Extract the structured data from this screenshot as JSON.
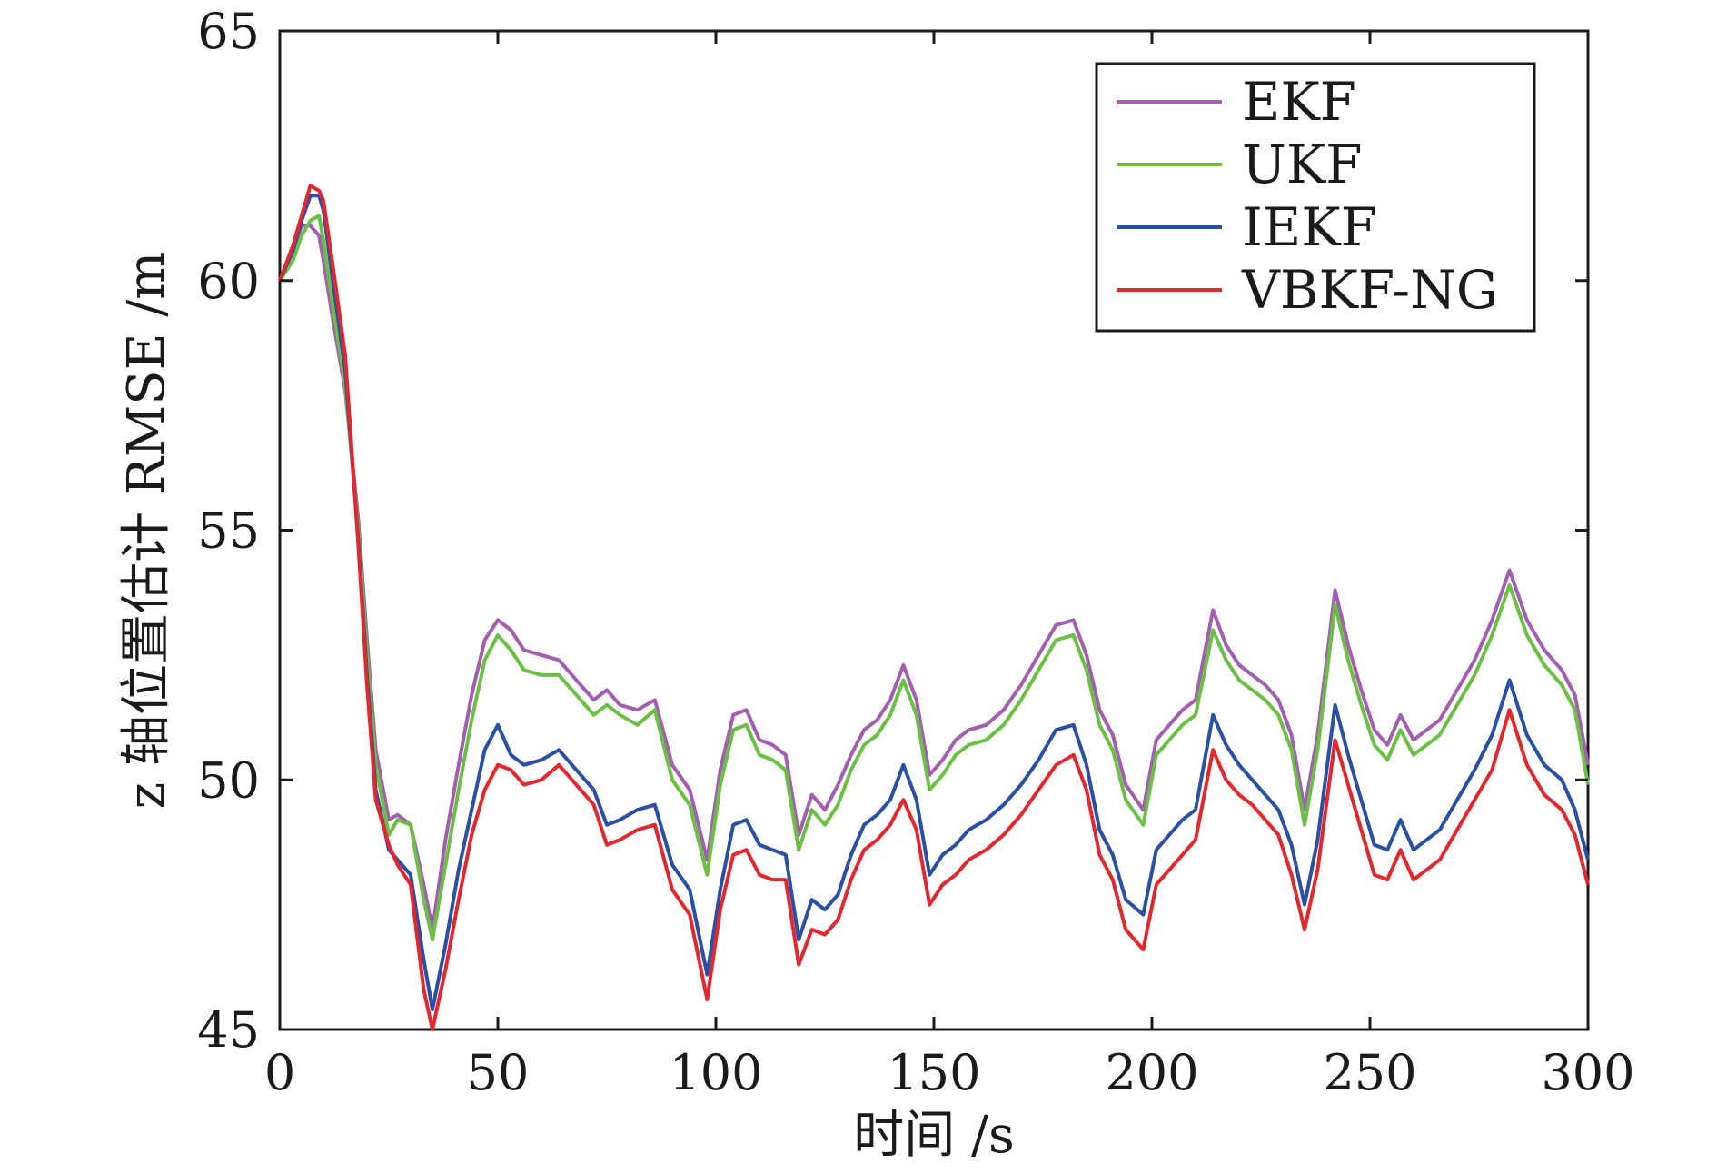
{
  "chart_data": {
    "type": "line",
    "xlabel": "时间 /s",
    "ylabel": "z 轴位置估计 RMSE /m",
    "xlim": [
      0,
      300
    ],
    "ylim": [
      45,
      65
    ],
    "xticks": [
      "0",
      "50",
      "100",
      "150",
      "200",
      "250",
      "300"
    ],
    "yticks": [
      "45",
      "50",
      "55",
      "60",
      "65"
    ],
    "grid": false,
    "legend_position": "top-right",
    "colors": {
      "EKF": "#a25fb0",
      "UKF": "#6cbf45",
      "IEKF": "#2a4fa3",
      "VBKF-NG": "#e2282e"
    },
    "x": [
      0,
      3,
      5,
      7,
      9,
      10,
      12,
      15,
      18,
      20,
      22,
      25,
      27,
      30,
      33,
      35,
      38,
      41,
      44,
      47,
      50,
      53,
      56,
      60,
      64,
      68,
      72,
      75,
      78,
      82,
      86,
      90,
      94,
      98,
      101,
      104,
      107,
      110,
      113,
      116,
      119,
      122,
      125,
      128,
      131,
      134,
      137,
      140,
      143,
      146,
      149,
      152,
      155,
      158,
      162,
      166,
      170,
      174,
      178,
      182,
      185,
      188,
      191,
      194,
      198,
      201,
      204,
      207,
      210,
      214,
      217,
      220,
      223,
      226,
      229,
      232,
      235,
      238,
      242,
      245,
      248,
      251,
      254,
      257,
      260,
      263,
      266,
      270,
      274,
      278,
      282,
      286,
      290,
      294,
      297,
      300
    ],
    "series": [
      {
        "name": "EKF",
        "values": [
          60.0,
          60.6,
          61.1,
          61.1,
          60.9,
          60.4,
          59.3,
          57.8,
          55.2,
          52.8,
          50.6,
          49.2,
          49.3,
          49.1,
          47.9,
          47.0,
          48.8,
          50.3,
          51.7,
          52.8,
          53.2,
          53.0,
          52.6,
          52.5,
          52.4,
          52.0,
          51.6,
          51.8,
          51.5,
          51.4,
          51.6,
          50.3,
          49.8,
          48.4,
          50.2,
          51.3,
          51.4,
          50.8,
          50.7,
          50.5,
          48.9,
          49.7,
          49.4,
          49.9,
          50.5,
          51.0,
          51.2,
          51.6,
          52.3,
          51.6,
          50.1,
          50.4,
          50.8,
          51.0,
          51.1,
          51.4,
          51.9,
          52.5,
          53.1,
          53.2,
          52.5,
          51.4,
          50.9,
          49.9,
          49.4,
          50.8,
          51.1,
          51.4,
          51.6,
          53.4,
          52.7,
          52.3,
          52.1,
          51.9,
          51.6,
          50.9,
          49.4,
          50.9,
          53.8,
          52.7,
          51.8,
          51.0,
          50.7,
          51.3,
          50.8,
          51.0,
          51.2,
          51.8,
          52.4,
          53.2,
          54.2,
          53.2,
          52.6,
          52.2,
          51.7,
          50.3
        ]
      },
      {
        "name": "UKF",
        "values": [
          60.0,
          60.4,
          60.9,
          61.2,
          61.3,
          60.8,
          59.6,
          57.9,
          55.0,
          52.5,
          50.3,
          48.9,
          49.2,
          49.1,
          47.6,
          46.8,
          48.3,
          49.8,
          51.2,
          52.4,
          52.9,
          52.6,
          52.2,
          52.1,
          52.1,
          51.7,
          51.3,
          51.5,
          51.3,
          51.1,
          51.4,
          50.0,
          49.5,
          48.1,
          49.9,
          51.0,
          51.1,
          50.5,
          50.4,
          50.2,
          48.6,
          49.4,
          49.1,
          49.5,
          50.2,
          50.7,
          50.9,
          51.3,
          52.0,
          51.3,
          49.8,
          50.1,
          50.5,
          50.7,
          50.8,
          51.1,
          51.6,
          52.2,
          52.8,
          52.9,
          52.2,
          51.1,
          50.6,
          49.6,
          49.1,
          50.5,
          50.8,
          51.1,
          51.3,
          53.0,
          52.4,
          52.0,
          51.8,
          51.6,
          51.3,
          50.6,
          49.1,
          50.6,
          53.5,
          52.4,
          51.5,
          50.7,
          50.4,
          51.0,
          50.5,
          50.7,
          50.9,
          51.5,
          52.1,
          52.9,
          53.9,
          52.9,
          52.3,
          51.9,
          51.4,
          49.9
        ]
      },
      {
        "name": "IEKF",
        "values": [
          60.0,
          60.6,
          61.2,
          61.7,
          61.7,
          61.4,
          60.1,
          58.2,
          54.8,
          52.1,
          49.8,
          48.6,
          48.4,
          48.1,
          46.4,
          45.4,
          46.7,
          48.2,
          49.4,
          50.6,
          51.1,
          50.5,
          50.3,
          50.4,
          50.6,
          50.2,
          49.8,
          49.1,
          49.2,
          49.4,
          49.5,
          48.3,
          47.8,
          46.1,
          47.8,
          49.1,
          49.2,
          48.7,
          48.6,
          48.5,
          46.8,
          47.6,
          47.4,
          47.7,
          48.5,
          49.1,
          49.3,
          49.6,
          50.3,
          49.6,
          48.1,
          48.5,
          48.7,
          49.0,
          49.2,
          49.5,
          49.9,
          50.4,
          51.0,
          51.1,
          50.3,
          49.0,
          48.5,
          47.6,
          47.3,
          48.6,
          48.9,
          49.2,
          49.4,
          51.3,
          50.7,
          50.3,
          50.0,
          49.7,
          49.4,
          48.7,
          47.5,
          48.8,
          51.5,
          50.5,
          49.6,
          48.7,
          48.6,
          49.2,
          48.6,
          48.8,
          49.0,
          49.6,
          50.2,
          50.9,
          52.0,
          50.9,
          50.3,
          50.0,
          49.4,
          48.4
        ]
      },
      {
        "name": "VBKF-NG",
        "values": [
          60.0,
          60.7,
          61.3,
          61.9,
          61.8,
          61.6,
          60.4,
          58.5,
          54.7,
          51.9,
          49.6,
          48.7,
          48.3,
          47.9,
          45.8,
          45.0,
          46.2,
          47.6,
          48.9,
          49.8,
          50.3,
          50.2,
          49.9,
          50.0,
          50.3,
          49.9,
          49.5,
          48.7,
          48.8,
          49.0,
          49.1,
          47.8,
          47.3,
          45.6,
          47.4,
          48.5,
          48.6,
          48.1,
          48.0,
          48.0,
          46.3,
          47.0,
          46.9,
          47.2,
          48.0,
          48.6,
          48.8,
          49.1,
          49.6,
          49.0,
          47.5,
          47.9,
          48.1,
          48.4,
          48.6,
          48.9,
          49.3,
          49.8,
          50.3,
          50.5,
          49.8,
          48.5,
          48.0,
          47.0,
          46.6,
          47.9,
          48.2,
          48.5,
          48.8,
          50.6,
          50.0,
          49.7,
          49.5,
          49.2,
          48.9,
          48.1,
          47.0,
          48.2,
          50.8,
          49.9,
          49.0,
          48.1,
          48.0,
          48.6,
          48.0,
          48.2,
          48.4,
          49.0,
          49.6,
          50.2,
          51.4,
          50.3,
          49.7,
          49.4,
          48.9,
          47.9
        ]
      }
    ]
  }
}
